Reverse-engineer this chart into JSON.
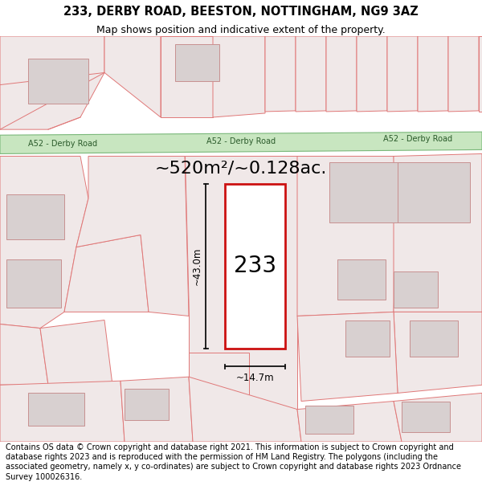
{
  "title_line1": "233, DERBY ROAD, BEESTON, NOTTINGHAM, NG9 3AZ",
  "title_line2": "Map shows position and indicative extent of the property.",
  "area_text": "~520m²/~0.128ac.",
  "property_number": "233",
  "dim_height": "~43.0m",
  "dim_width": "~14.7m",
  "road_label_left": "A52 - Derby Road",
  "road_label_mid": "A52 - Derby Road",
  "road_label_right": "A52 - Derby Road",
  "footer_text": "Contains OS data © Crown copyright and database right 2021. This information is subject to Crown copyright and database rights 2023 and is reproduced with the permission of HM Land Registry. The polygons (including the associated geometry, namely x, y co-ordinates) are subject to Crown copyright and database rights 2023 Ordnance Survey 100026316.",
  "map_bg": "#ffffff",
  "road_fill": "#c8e6c0",
  "road_stroke": "#7ab87a",
  "plot_stroke": "#cc1111",
  "plot_fill": "#ffffff",
  "parcel_stroke": "#e07878",
  "parcel_fill": "#f0e8e8",
  "building_fill": "#d8d0d0",
  "building_stroke": "#c89090",
  "dim_line_color": "#111111",
  "title_fontsize": 10.5,
  "subtitle_fontsize": 9,
  "area_fontsize": 16,
  "number_fontsize": 20,
  "dim_label_fontsize": 8.5,
  "road_label_fontsize": 7,
  "footer_fontsize": 7
}
